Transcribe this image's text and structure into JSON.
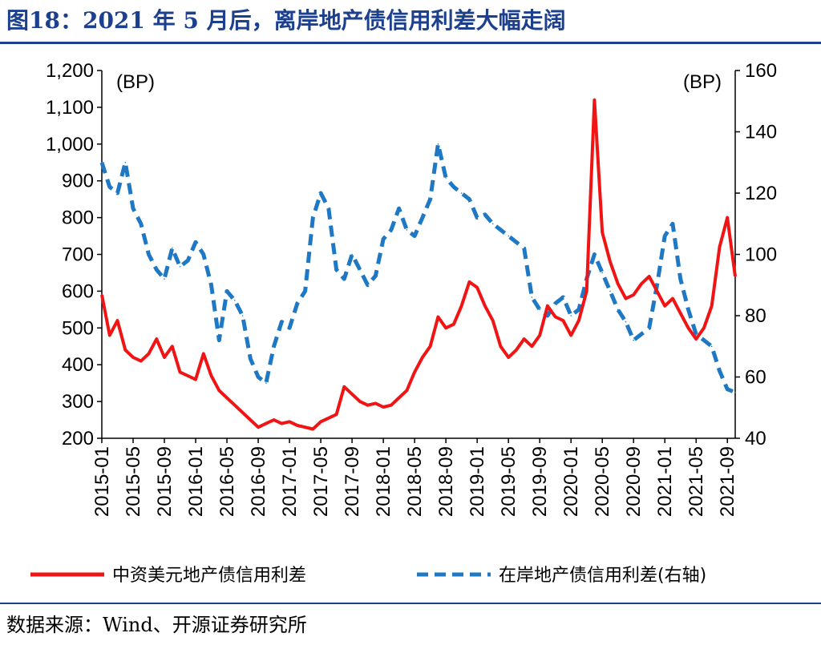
{
  "title": "图18：2021 年 5 月后，离岸地产债信用利差大幅走阔",
  "source": "数据来源：Wind、开源证券研究所",
  "colors": {
    "offshore": "#f01414",
    "onshore": "#1f78c4",
    "title": "#1c3f8e"
  },
  "chart_data": {
    "type": "line",
    "xlabel": "",
    "ylabel_left": "(BP)",
    "ylabel_right": "(BP)",
    "ylim_left": [
      200,
      1200
    ],
    "ylim_right": [
      40,
      160
    ],
    "yticks_left": [
      "200",
      "300",
      "400",
      "500",
      "600",
      "700",
      "800",
      "900",
      "1,000",
      "1,100",
      "1,200"
    ],
    "yticks_right": [
      "40",
      "60",
      "80",
      "100",
      "120",
      "140",
      "160"
    ],
    "x_labels": [
      "2015-01",
      "2015-05",
      "2015-09",
      "2016-01",
      "2016-05",
      "2016-09",
      "2017-01",
      "2017-05",
      "2017-09",
      "2018-01",
      "2018-05",
      "2018-09",
      "2019-01",
      "2019-05",
      "2019-09",
      "2020-01",
      "2020-05",
      "2020-09",
      "2021-01",
      "2021-05",
      "2021-09"
    ],
    "x_range": [
      "2015-01",
      "2021-10"
    ],
    "legend_placement": "bottom",
    "series": [
      {
        "name": "中资美元地产债信用利差",
        "axis": "left",
        "style": "solid",
        "x": [
          "2015-01",
          "2015-02",
          "2015-03",
          "2015-04",
          "2015-05",
          "2015-06",
          "2015-07",
          "2015-08",
          "2015-09",
          "2015-10",
          "2015-11",
          "2015-12",
          "2016-01",
          "2016-02",
          "2016-03",
          "2016-04",
          "2016-05",
          "2016-06",
          "2016-07",
          "2016-08",
          "2016-09",
          "2016-10",
          "2016-11",
          "2016-12",
          "2017-01",
          "2017-02",
          "2017-03",
          "2017-04",
          "2017-05",
          "2017-06",
          "2017-07",
          "2017-08",
          "2017-09",
          "2017-10",
          "2017-11",
          "2017-12",
          "2018-01",
          "2018-02",
          "2018-03",
          "2018-04",
          "2018-05",
          "2018-06",
          "2018-07",
          "2018-08",
          "2018-09",
          "2018-10",
          "2018-11",
          "2018-12",
          "2019-01",
          "2019-02",
          "2019-03",
          "2019-04",
          "2019-05",
          "2019-06",
          "2019-07",
          "2019-08",
          "2019-09",
          "2019-10",
          "2019-11",
          "2019-12",
          "2020-01",
          "2020-02",
          "2020-03",
          "2020-04",
          "2020-05",
          "2020-06",
          "2020-07",
          "2020-08",
          "2020-09",
          "2020-10",
          "2020-11",
          "2020-12",
          "2021-01",
          "2021-02",
          "2021-03",
          "2021-04",
          "2021-05",
          "2021-06",
          "2021-07",
          "2021-08",
          "2021-09",
          "2021-10"
        ],
        "values": [
          590,
          480,
          520,
          440,
          420,
          410,
          430,
          470,
          420,
          450,
          380,
          370,
          360,
          430,
          370,
          330,
          310,
          290,
          270,
          250,
          230,
          240,
          250,
          240,
          245,
          235,
          230,
          225,
          245,
          255,
          265,
          340,
          320,
          300,
          290,
          295,
          285,
          290,
          310,
          330,
          380,
          420,
          450,
          530,
          500,
          510,
          560,
          625,
          610,
          560,
          520,
          450,
          420,
          440,
          470,
          450,
          480,
          560,
          530,
          520,
          480,
          520,
          600,
          1120,
          760,
          680,
          620,
          580,
          590,
          620,
          640,
          600,
          560,
          580,
          540,
          500,
          470,
          500,
          560,
          720,
          800,
          640
        ]
      },
      {
        "name": "在岸地产债信用利差(右轴)",
        "axis": "right",
        "style": "dashed",
        "x": [
          "2015-01",
          "2015-02",
          "2015-03",
          "2015-04",
          "2015-05",
          "2015-06",
          "2015-07",
          "2015-08",
          "2015-09",
          "2015-10",
          "2015-11",
          "2015-12",
          "2016-01",
          "2016-02",
          "2016-03",
          "2016-04",
          "2016-05",
          "2016-06",
          "2016-07",
          "2016-08",
          "2016-09",
          "2016-10",
          "2016-11",
          "2016-12",
          "2017-01",
          "2017-02",
          "2017-03",
          "2017-04",
          "2017-05",
          "2017-06",
          "2017-07",
          "2017-08",
          "2017-09",
          "2017-10",
          "2017-11",
          "2017-12",
          "2018-01",
          "2018-02",
          "2018-03",
          "2018-04",
          "2018-05",
          "2018-06",
          "2018-07",
          "2018-08",
          "2018-09",
          "2018-10",
          "2018-11",
          "2018-12",
          "2019-01",
          "2019-02",
          "2019-03",
          "2019-04",
          "2019-05",
          "2019-06",
          "2019-07",
          "2019-08",
          "2019-09",
          "2019-10",
          "2019-11",
          "2019-12",
          "2020-01",
          "2020-02",
          "2020-03",
          "2020-04",
          "2020-05",
          "2020-06",
          "2020-07",
          "2020-08",
          "2020-09",
          "2020-10",
          "2020-11",
          "2020-12",
          "2021-01",
          "2021-02",
          "2021-03",
          "2021-04",
          "2021-05",
          "2021-06",
          "2021-07",
          "2021-08",
          "2021-09",
          "2021-10"
        ],
        "values": [
          130,
          122,
          120,
          130,
          115,
          110,
          100,
          95,
          92,
          102,
          96,
          98,
          104,
          100,
          90,
          72,
          88,
          85,
          80,
          66,
          60,
          58,
          70,
          78,
          76,
          84,
          88,
          112,
          120,
          115,
          95,
          92,
          100,
          95,
          90,
          93,
          105,
          108,
          115,
          108,
          106,
          112,
          118,
          136,
          125,
          122,
          120,
          118,
          112,
          113,
          110,
          108,
          106,
          104,
          102,
          86,
          82,
          80,
          84,
          86,
          80,
          82,
          92,
          100,
          94,
          88,
          82,
          78,
          72,
          74,
          76,
          90,
          106,
          110,
          92,
          82,
          74,
          72,
          70,
          62,
          56,
          55
        ]
      }
    ]
  }
}
